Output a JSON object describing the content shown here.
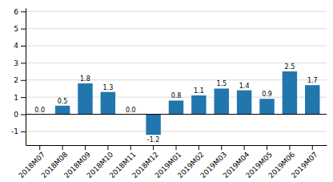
{
  "chart_data": {
    "type": "bar",
    "categories": [
      "2018M07",
      "2018M08",
      "2018M09",
      "2018M10",
      "2018M11",
      "2018M12",
      "2019M01",
      "2019M02",
      "2019M03",
      "2019M04",
      "2019M05",
      "2019M06",
      "2019M07"
    ],
    "values": [
      0.0,
      0.5,
      1.8,
      1.3,
      0.0,
      -1.2,
      0.8,
      1.1,
      1.5,
      1.4,
      0.9,
      2.5,
      1.7
    ],
    "value_labels": [
      "0.0",
      "0.5",
      "1.8",
      "1.3",
      "0.0",
      "-1.2",
      "0.8",
      "1.1",
      "1.5",
      "1.4",
      "0.9",
      "2.5",
      "1.7"
    ],
    "color": "#2176ae",
    "ylim": [
      -1.8,
      6.2
    ],
    "yticks": [
      -1,
      0,
      1,
      2,
      3,
      4,
      5,
      6
    ],
    "grid": true,
    "data_labels": true
  }
}
